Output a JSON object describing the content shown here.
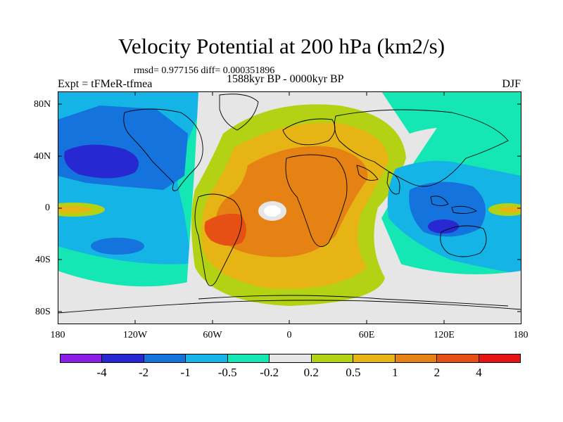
{
  "header": {
    "title": "Velocity Potential at 200 hPa (km2/s)",
    "stats": "rmsd= 0.977156 diff= 0.000351896",
    "left_label": "Expt = tFMeR-tfmea",
    "center_label": "1588kyr BP - 0000kyr BP",
    "right_label": "DJF"
  },
  "axes": {
    "lat_labels": [
      "80N",
      "40N",
      "0",
      "40S",
      "80S"
    ],
    "lon_labels": [
      "180",
      "120W",
      "60W",
      "0",
      "60E",
      "120E",
      "180"
    ]
  },
  "colorbar": {
    "colors": [
      "#8a1ee6",
      "#2828d2",
      "#1473dc",
      "#14b4e6",
      "#14e6b4",
      "#e6e6e6",
      "#b4d214",
      "#e6b414",
      "#e68214",
      "#e65014",
      "#e61414"
    ],
    "labels": [
      "-4",
      "-2",
      "-1",
      "-0.5",
      "-0.2",
      "0.2",
      "0.5",
      "1",
      "2",
      "4"
    ]
  },
  "chart_data": {
    "type": "contour-map",
    "title": "Velocity Potential at 200 hPa (km2/s)",
    "lon_range": [
      -180,
      180
    ],
    "lat_range": [
      -90,
      90
    ],
    "contour_levels": [
      -4,
      -2,
      -1,
      -0.5,
      -0.2,
      0.2,
      0.5,
      1,
      2,
      4
    ]
  }
}
